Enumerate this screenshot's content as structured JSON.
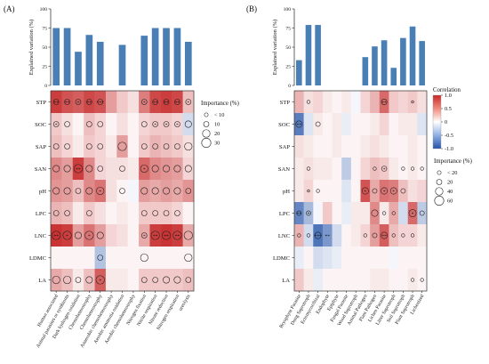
{
  "chart_data": [
    {
      "panel": "(A)",
      "type": "bar",
      "ylabel": "Explained variation (%)",
      "ylim": [
        0,
        100
      ],
      "yticks": [
        0,
        25,
        50,
        75,
        100
      ],
      "categories": [
        "Human associated",
        "Animal parasites or symbionts",
        "Dark hydrogen oxidation",
        "Chemoheterotrophy",
        "Chemoheterotrophy",
        "Anaerobic chemoheterotrophy",
        "Aerobic ammonia oxidation",
        "Aerobic chemoheterotrophy",
        "Nitrogen fixation",
        "Nitrite respiration",
        "Nitrate reduction",
        "Nitrogen respiration",
        "ureolysis"
      ],
      "values": [
        75,
        75,
        44,
        66,
        57,
        0,
        53,
        0,
        65,
        75,
        75,
        75,
        57
      ],
      "heatmap": {
        "type": "heatmap",
        "rows": [
          "STP",
          "SOC",
          "SAP",
          "SAN",
          "pH",
          "LPC",
          "LNC",
          "LDMC",
          "LA"
        ],
        "values": [
          [
            0.9,
            0.8,
            0.75,
            0.85,
            0.8,
            0.45,
            0.25,
            0.15,
            0.6,
            0.85,
            0.9,
            0.85,
            0.3
          ],
          [
            0.25,
            0.15,
            0.05,
            0.3,
            0.2,
            0.05,
            0.15,
            0.05,
            0.2,
            0.25,
            0.25,
            0.2,
            -0.2
          ],
          [
            0.3,
            0.2,
            0.1,
            0.25,
            0.2,
            0.1,
            0.45,
            0.05,
            0.25,
            0.35,
            0.3,
            0.25,
            0.15
          ],
          [
            0.55,
            0.45,
            0.9,
            0.55,
            0.2,
            0.15,
            0.15,
            0.1,
            0.7,
            0.55,
            0.5,
            0.45,
            0.2
          ],
          [
            0.5,
            0.45,
            0.3,
            0.55,
            0.65,
            0.15,
            0.05,
            -0.05,
            0.45,
            0.4,
            0.45,
            0.4,
            0.5
          ],
          [
            0.35,
            0.3,
            0.1,
            0.25,
            0.15,
            0.05,
            0.1,
            0.05,
            0.25,
            0.25,
            0.25,
            0.2,
            0.05
          ],
          [
            0.95,
            0.9,
            0.45,
            0.65,
            0.45,
            0.2,
            0.15,
            0.05,
            0.4,
            0.9,
            0.95,
            0.9,
            0.4
          ],
          [
            0.05,
            0.05,
            0.05,
            0.05,
            -0.35,
            0.05,
            0.05,
            0.05,
            0.05,
            0.05,
            0.05,
            0.05,
            0.05
          ],
          [
            0.4,
            0.3,
            0.1,
            0.3,
            0.75,
            0.1,
            0.1,
            0.05,
            0.25,
            0.25,
            0.25,
            0.25,
            0.3
          ]
        ],
        "importance": [
          [
            10,
            10,
            10,
            10,
            10,
            0,
            0,
            0,
            10,
            10,
            10,
            10,
            10
          ],
          [
            10,
            10,
            0,
            10,
            10,
            0,
            0,
            0,
            10,
            10,
            10,
            10,
            15
          ],
          [
            10,
            10,
            0,
            10,
            10,
            0,
            25,
            0,
            10,
            10,
            10,
            10,
            20
          ],
          [
            15,
            15,
            25,
            15,
            10,
            0,
            10,
            0,
            20,
            15,
            15,
            15,
            15
          ],
          [
            15,
            15,
            10,
            15,
            20,
            0,
            10,
            0,
            15,
            15,
            15,
            15,
            10
          ],
          [
            10,
            10,
            0,
            10,
            0,
            0,
            0,
            0,
            10,
            10,
            10,
            10,
            0
          ],
          [
            25,
            25,
            15,
            25,
            15,
            0,
            0,
            0,
            10,
            25,
            25,
            25,
            25
          ],
          [
            0,
            0,
            0,
            0,
            10,
            0,
            0,
            0,
            20,
            0,
            0,
            0,
            20
          ],
          [
            20,
            20,
            10,
            15,
            25,
            0,
            0,
            0,
            10,
            10,
            15,
            15,
            10
          ]
        ],
        "stars": [
          [
            "**",
            "**",
            "*",
            "**",
            "***",
            "",
            "",
            "",
            "*",
            "**",
            "**",
            "**",
            "*"
          ],
          [
            "*",
            "",
            "",
            "",
            "",
            "",
            "",
            "",
            "",
            "*",
            "*",
            "*",
            ""
          ],
          [
            "",
            "",
            "",
            "",
            "",
            "",
            "",
            "",
            "",
            "",
            "",
            "",
            ""
          ],
          [
            "",
            "",
            "**",
            "",
            "",
            "",
            "",
            "",
            "*",
            "",
            "",
            "",
            ""
          ],
          [
            "",
            "",
            "",
            "",
            "*",
            "",
            "",
            "",
            "",
            "",
            "",
            "",
            ""
          ],
          [
            "",
            "",
            "",
            "",
            "",
            "",
            "",
            "",
            "",
            "",
            "",
            "",
            ""
          ],
          [
            "**",
            "*",
            "",
            "*",
            "",
            "",
            "",
            "",
            "*",
            "**",
            "**",
            "**",
            ""
          ],
          [
            "",
            "",
            "",
            "",
            "",
            "",
            "",
            "",
            "",
            "",
            "",
            "",
            ""
          ],
          [
            "",
            "",
            "",
            "",
            "*",
            "",
            "",
            "",
            "",
            "",
            "",
            "",
            ""
          ]
        ]
      },
      "legend": {
        "title": "Importance (%)",
        "sizes": [
          5,
          10,
          20,
          30
        ],
        "labels": [
          "< 10",
          "10",
          "20",
          "30"
        ]
      }
    },
    {
      "panel": "(B)",
      "type": "bar",
      "ylabel": "Explained variation (%)",
      "ylim": [
        0,
        100
      ],
      "yticks": [
        0,
        25,
        50,
        75,
        100
      ],
      "categories": [
        "Bryophyte Parasite",
        "Dung Saprotroph",
        "Ectomycorrhizal",
        "Endophyte",
        "Epiphyte",
        "Fungal Parasite",
        "Wood Saprotroph",
        "Animal Pathogen",
        "Plant Pathogen",
        "Lichen Parasite",
        "Litter Saprotroph",
        "Soil Saprotroph",
        "Plant Saprotroph",
        "Lichenized"
      ],
      "values": [
        33,
        79,
        79,
        0,
        0,
        0,
        0,
        37,
        51,
        59,
        23,
        62,
        77,
        58
      ],
      "heatmap": {
        "type": "heatmap",
        "rows": [
          "STP",
          "SOC",
          "SAP",
          "SAN",
          "pH",
          "LPC",
          "LNC",
          "LDMC",
          "LA"
        ],
        "values": [
          [
            0.35,
            0.15,
            0.2,
            0.1,
            0.05,
            0.1,
            -0.05,
            0.2,
            0.35,
            0.7,
            0.25,
            0.2,
            0.25,
            0.15
          ],
          [
            -0.75,
            -0.15,
            0.1,
            0.05,
            0.1,
            -0.1,
            0.05,
            0.05,
            0.1,
            0.2,
            0.05,
            0.1,
            0.1,
            -0.15
          ],
          [
            0.15,
            0.1,
            0.05,
            0.05,
            0.1,
            0.05,
            0.05,
            0.1,
            0.15,
            0.1,
            0.05,
            0.05,
            0.1,
            0.05
          ],
          [
            0.1,
            0.15,
            0.1,
            0.1,
            0.05,
            -0.3,
            0.05,
            0.2,
            0.3,
            0.25,
            0.1,
            0.05,
            0.1,
            0.05
          ],
          [
            0.1,
            0.2,
            0.05,
            0.05,
            0.05,
            -0.15,
            0.05,
            0.8,
            0.4,
            0.65,
            0.6,
            0.3,
            0.15,
            0.2
          ],
          [
            -0.7,
            -0.4,
            -0.05,
            0.25,
            0.05,
            -0.1,
            0.1,
            0.1,
            0.55,
            0.1,
            0.4,
            -0.2,
            0.7,
            -0.3
          ],
          [
            0.35,
            -0.2,
            -0.8,
            -0.6,
            -0.2,
            0.05,
            0.1,
            0.2,
            0.45,
            0.75,
            0.3,
            0.2,
            0.2,
            0.1
          ],
          [
            -0.1,
            0.05,
            -0.2,
            -0.15,
            -0.1,
            0.05,
            0.05,
            0.05,
            0.05,
            0.05,
            -0.05,
            0.05,
            0.05,
            0.05
          ],
          [
            0.25,
            0.1,
            -0.1,
            0.05,
            0.05,
            0.05,
            0.05,
            0.05,
            0.1,
            0.1,
            0.05,
            0.05,
            0.1,
            0.05
          ]
        ],
        "importance": [
          [
            0,
            10,
            0,
            0,
            0,
            0,
            0,
            0,
            0,
            30,
            0,
            0,
            5,
            0
          ],
          [
            40,
            0,
            20,
            0,
            0,
            0,
            0,
            0,
            0,
            0,
            0,
            0,
            0,
            0
          ],
          [
            0,
            0,
            0,
            0,
            0,
            0,
            0,
            0,
            0,
            0,
            0,
            0,
            0,
            0
          ],
          [
            0,
            10,
            0,
            0,
            0,
            0,
            0,
            0,
            10,
            25,
            0,
            10,
            10,
            10
          ],
          [
            0,
            5,
            10,
            0,
            0,
            0,
            0,
            40,
            20,
            40,
            40,
            20,
            0,
            0
          ],
          [
            20,
            20,
            0,
            0,
            0,
            0,
            0,
            0,
            40,
            10,
            10,
            0,
            50,
            20
          ],
          [
            10,
            10,
            40,
            0,
            0,
            0,
            0,
            10,
            20,
            40,
            10,
            10,
            10,
            0
          ],
          [
            0,
            0,
            0,
            0,
            0,
            0,
            0,
            0,
            0,
            0,
            0,
            0,
            0,
            0
          ],
          [
            0,
            0,
            0,
            0,
            0,
            0,
            0,
            0,
            0,
            0,
            0,
            0,
            10,
            10
          ]
        ],
        "stars": [
          [
            "",
            "",
            "",
            "",
            "",
            "",
            "",
            "",
            "",
            "**",
            "",
            "",
            "",
            ""
          ],
          [
            "**",
            "",
            "",
            "",
            "",
            "",
            "",
            "",
            "",
            "",
            "",
            "",
            "",
            ""
          ],
          [
            "",
            "",
            "",
            "",
            "",
            "",
            "",
            "",
            "",
            "",
            "",
            "",
            "",
            ""
          ],
          [
            "",
            "",
            "",
            "",
            "",
            "",
            "",
            "",
            "",
            "*",
            "",
            "",
            "",
            ""
          ],
          [
            "",
            "",
            "",
            "",
            "",
            "",
            "",
            "*",
            "",
            "*",
            "*",
            "",
            "",
            ""
          ],
          [
            "**",
            "*",
            "",
            "",
            "",
            "",
            "",
            "",
            "",
            "",
            "",
            "",
            "*",
            ""
          ],
          [
            "",
            "",
            "***",
            "**",
            "",
            "",
            "",
            "",
            "",
            "**",
            "",
            "",
            "",
            ""
          ],
          [
            "",
            "",
            "",
            "",
            "",
            "",
            "",
            "",
            "",
            "",
            "",
            "",
            "",
            ""
          ],
          [
            "",
            "",
            "",
            "",
            "",
            "",
            "",
            "",
            "",
            "",
            "",
            "",
            "",
            ""
          ]
        ]
      },
      "colorbar": {
        "title": "Correlation",
        "ticks": [
          1.0,
          0.5,
          0.0,
          -0.5,
          -1.0
        ],
        "tick_labels": [
          "1.0",
          "0.5",
          "0",
          "-0.5",
          "-1.0"
        ]
      },
      "legend": {
        "title": "Importance (%)",
        "sizes": [
          10,
          20,
          40,
          60
        ],
        "labels": [
          "< 20",
          "20",
          "40",
          "60"
        ]
      }
    }
  ],
  "colors": {
    "bar": "#4a7fb5",
    "positive": "#d73027",
    "negative": "#2c63b8",
    "neutral": "#ffffff",
    "circle": "#222222"
  }
}
